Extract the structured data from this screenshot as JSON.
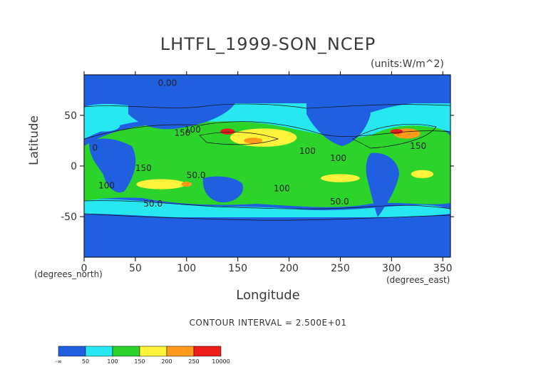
{
  "chart_data": {
    "type": "heatmap",
    "title": "LHTFL_1999-SON_NCEP",
    "units": "(units:W/m^2)",
    "xlabel": "Longitude",
    "ylabel": "Latitude",
    "x_unit_label": "(degrees_east)",
    "y_unit_label": "(degrees_north)",
    "xlim": [
      0,
      357.5
    ],
    "ylim": [
      -90,
      90
    ],
    "xticks": [
      0,
      50,
      100,
      150,
      200,
      250,
      300,
      350
    ],
    "yticks": [
      -50,
      0,
      50
    ],
    "contour_interval_text": "CONTOUR INTERVAL = 2.500E+01",
    "contour_labels": [
      "0.00",
      "150",
      "100",
      "0",
      "100",
      "150",
      "150",
      "100",
      "50.0",
      "50.0",
      "100",
      "100",
      "50.0"
    ],
    "colorbar": {
      "tick_labels": [
        "-∞",
        "50",
        "100",
        "150",
        "200",
        "250",
        "10000"
      ],
      "colors": [
        "#1f5fe0",
        "#27e8f0",
        "#2bd32b",
        "#fff23a",
        "#ff9a1a",
        "#ee1b1b"
      ]
    },
    "regions": [
      {
        "lon": 20,
        "lat": 40,
        "w": 30,
        "h": 12,
        "value": 75
      },
      {
        "lon": 175,
        "lat": 28,
        "w": 65,
        "h": 18,
        "value": 175
      },
      {
        "lon": 165,
        "lat": 25,
        "w": 18,
        "h": 6,
        "value": 225
      },
      {
        "lon": 140,
        "lat": 34,
        "w": 14,
        "h": 6,
        "value": 275
      },
      {
        "lon": 315,
        "lat": 32,
        "w": 26,
        "h": 10,
        "value": 225
      },
      {
        "lon": 305,
        "lat": 34,
        "w": 12,
        "h": 5,
        "value": 275
      },
      {
        "lon": 75,
        "lat": -18,
        "w": 48,
        "h": 10,
        "value": 175
      },
      {
        "lon": 100,
        "lat": -18,
        "w": 10,
        "h": 5,
        "value": 225
      },
      {
        "lon": 250,
        "lat": -12,
        "w": 38,
        "h": 8,
        "value": 175
      },
      {
        "lon": 330,
        "lat": -8,
        "w": 22,
        "h": 8,
        "value": 175
      }
    ]
  }
}
